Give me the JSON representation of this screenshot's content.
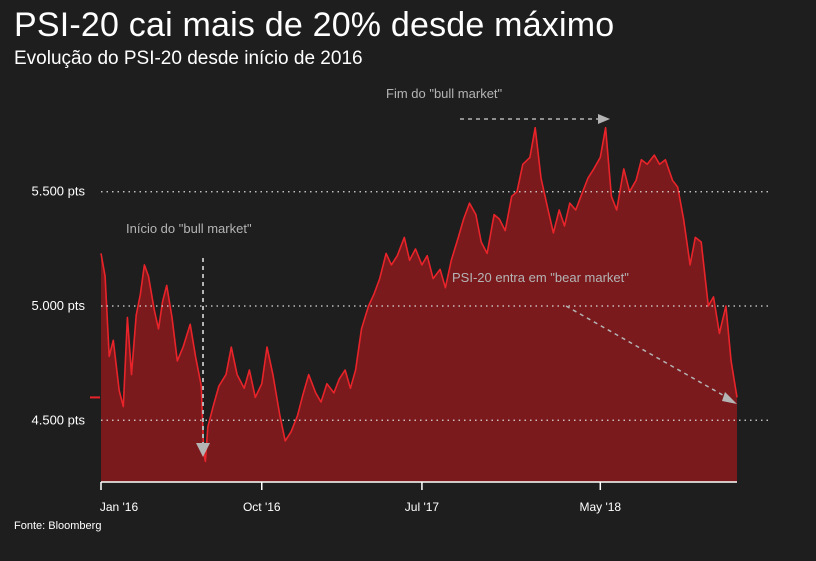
{
  "header": {
    "title": "PSI-20 cai mais de 20% desde máximo",
    "subtitle": "Evolução do PSI-20 desde início de 2016"
  },
  "footer": {
    "source": "Fonte: Bloomberg"
  },
  "colors": {
    "background": "#1e1e1e",
    "line": "#e8242a",
    "area": "#7a1a1d",
    "grid": "#d9d9d9",
    "annotation": "#b4b4b4"
  },
  "chart_data": {
    "type": "area",
    "grid": "horizontal dotted",
    "ylim": [
      4230,
      6050
    ],
    "y_ticks": [
      {
        "value": 4500,
        "label": "4.500 pts"
      },
      {
        "value": 5000,
        "label": "5.000 pts"
      },
      {
        "value": 5500,
        "label": "5.500 pts"
      }
    ],
    "x_ticks": [
      {
        "date": "2016-01-01",
        "label": "Jan '16"
      },
      {
        "date": "2016-10-01",
        "label": "Oct '16"
      },
      {
        "date": "2017-07-01",
        "label": "Jul '17"
      },
      {
        "date": "2018-05-01",
        "label": "May '18"
      }
    ],
    "series": [
      {
        "points": [
          [
            "2016-01-01",
            5230
          ],
          [
            "2016-01-08",
            5130
          ],
          [
            "2016-01-15",
            4780
          ],
          [
            "2016-01-22",
            4850
          ],
          [
            "2016-02-01",
            4630
          ],
          [
            "2016-02-08",
            4560
          ],
          [
            "2016-02-15",
            4950
          ],
          [
            "2016-02-22",
            4700
          ],
          [
            "2016-03-01",
            4960
          ],
          [
            "2016-03-08",
            5050
          ],
          [
            "2016-03-15",
            5180
          ],
          [
            "2016-03-22",
            5130
          ],
          [
            "2016-04-01",
            4980
          ],
          [
            "2016-04-08",
            4900
          ],
          [
            "2016-04-15",
            5020
          ],
          [
            "2016-04-22",
            5090
          ],
          [
            "2016-05-01",
            4950
          ],
          [
            "2016-05-10",
            4760
          ],
          [
            "2016-05-20",
            4820
          ],
          [
            "2016-06-01",
            4920
          ],
          [
            "2016-06-10",
            4780
          ],
          [
            "2016-06-20",
            4650
          ],
          [
            "2016-06-24",
            4360
          ],
          [
            "2016-06-27",
            4320
          ],
          [
            "2016-07-01",
            4470
          ],
          [
            "2016-07-10",
            4560
          ],
          [
            "2016-07-20",
            4650
          ],
          [
            "2016-08-01",
            4700
          ],
          [
            "2016-08-10",
            4820
          ],
          [
            "2016-08-20",
            4700
          ],
          [
            "2016-09-01",
            4640
          ],
          [
            "2016-09-10",
            4720
          ],
          [
            "2016-09-20",
            4600
          ],
          [
            "2016-10-01",
            4660
          ],
          [
            "2016-10-10",
            4820
          ],
          [
            "2016-10-20",
            4700
          ],
          [
            "2016-11-01",
            4520
          ],
          [
            "2016-11-10",
            4410
          ],
          [
            "2016-11-20",
            4450
          ],
          [
            "2016-12-01",
            4520
          ],
          [
            "2016-12-10",
            4610
          ],
          [
            "2016-12-20",
            4700
          ],
          [
            "2017-01-01",
            4620
          ],
          [
            "2017-01-10",
            4580
          ],
          [
            "2017-01-20",
            4660
          ],
          [
            "2017-02-01",
            4620
          ],
          [
            "2017-02-10",
            4680
          ],
          [
            "2017-02-20",
            4720
          ],
          [
            "2017-03-01",
            4640
          ],
          [
            "2017-03-10",
            4720
          ],
          [
            "2017-03-20",
            4900
          ],
          [
            "2017-04-01",
            5000
          ],
          [
            "2017-04-10",
            5050
          ],
          [
            "2017-04-20",
            5120
          ],
          [
            "2017-05-01",
            5230
          ],
          [
            "2017-05-10",
            5180
          ],
          [
            "2017-05-20",
            5220
          ],
          [
            "2017-06-01",
            5300
          ],
          [
            "2017-06-10",
            5200
          ],
          [
            "2017-06-20",
            5250
          ],
          [
            "2017-07-01",
            5180
          ],
          [
            "2017-07-10",
            5220
          ],
          [
            "2017-07-20",
            5120
          ],
          [
            "2017-08-01",
            5160
          ],
          [
            "2017-08-10",
            5080
          ],
          [
            "2017-08-20",
            5200
          ],
          [
            "2017-09-01",
            5300
          ],
          [
            "2017-09-10",
            5380
          ],
          [
            "2017-09-20",
            5450
          ],
          [
            "2017-10-01",
            5400
          ],
          [
            "2017-10-10",
            5280
          ],
          [
            "2017-10-20",
            5230
          ],
          [
            "2017-11-01",
            5400
          ],
          [
            "2017-11-10",
            5380
          ],
          [
            "2017-11-20",
            5330
          ],
          [
            "2017-12-01",
            5480
          ],
          [
            "2017-12-10",
            5500
          ],
          [
            "2017-12-20",
            5620
          ],
          [
            "2018-01-01",
            5650
          ],
          [
            "2018-01-10",
            5780
          ],
          [
            "2018-01-20",
            5560
          ],
          [
            "2018-02-01",
            5420
          ],
          [
            "2018-02-10",
            5320
          ],
          [
            "2018-02-20",
            5420
          ],
          [
            "2018-03-01",
            5350
          ],
          [
            "2018-03-10",
            5450
          ],
          [
            "2018-03-20",
            5420
          ],
          [
            "2018-04-01",
            5500
          ],
          [
            "2018-04-10",
            5560
          ],
          [
            "2018-04-20",
            5600
          ],
          [
            "2018-05-01",
            5650
          ],
          [
            "2018-05-10",
            5780
          ],
          [
            "2018-05-20",
            5480
          ],
          [
            "2018-05-29",
            5420
          ],
          [
            "2018-06-10",
            5600
          ],
          [
            "2018-06-20",
            5500
          ],
          [
            "2018-07-01",
            5550
          ],
          [
            "2018-07-10",
            5640
          ],
          [
            "2018-07-20",
            5620
          ],
          [
            "2018-08-01",
            5660
          ],
          [
            "2018-08-10",
            5620
          ],
          [
            "2018-08-20",
            5640
          ],
          [
            "2018-09-01",
            5550
          ],
          [
            "2018-09-10",
            5520
          ],
          [
            "2018-09-20",
            5380
          ],
          [
            "2018-10-01",
            5180
          ],
          [
            "2018-10-10",
            5300
          ],
          [
            "2018-10-20",
            5280
          ],
          [
            "2018-11-01",
            5000
          ],
          [
            "2018-11-10",
            5040
          ],
          [
            "2018-11-20",
            4880
          ],
          [
            "2018-12-01",
            5000
          ],
          [
            "2018-12-10",
            4760
          ],
          [
            "2018-12-20",
            4600
          ]
        ]
      }
    ],
    "annotations": [
      {
        "text": "Início do \"bull market\"",
        "date": "2016-06-27"
      },
      {
        "text": "Fim do \"bull market\"",
        "date": "2018-01-23"
      },
      {
        "text": "PSI-20 entra em \"bear market\"",
        "date": "2018-12-20"
      }
    ]
  }
}
